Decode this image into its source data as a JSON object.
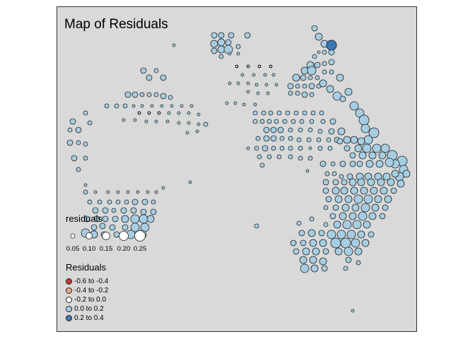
{
  "title": "Map of Residuals",
  "size_legend": {
    "title": "residuals",
    "entries": [
      {
        "label": "0.05",
        "value": 0.05
      },
      {
        "label": "0.10",
        "value": 0.1
      },
      {
        "label": "0.15",
        "value": 0.15
      },
      {
        "label": "0.20",
        "value": 0.2
      },
      {
        "label": "0.25",
        "value": 0.25
      }
    ]
  },
  "color_legend": {
    "title": "Residuals",
    "entries": [
      {
        "label": "-0.6 to -0.4",
        "color": "#c0392b"
      },
      {
        "label": "-0.4 to -0.2",
        "color": "#f4a582"
      },
      {
        "label": "-0.2 to 0.0",
        "color": "#ffffff"
      },
      {
        "label": "0.0 to 0.2",
        "color": "#a6cee3"
      },
      {
        "label": "0.2 to 0.4",
        "color": "#3a78b8"
      }
    ]
  },
  "colors": {
    "panel_bg": "#d9d9d9",
    "positive_light": "#a6cee3",
    "positive_dark": "#3a78b8",
    "outline": "#222222"
  }
}
